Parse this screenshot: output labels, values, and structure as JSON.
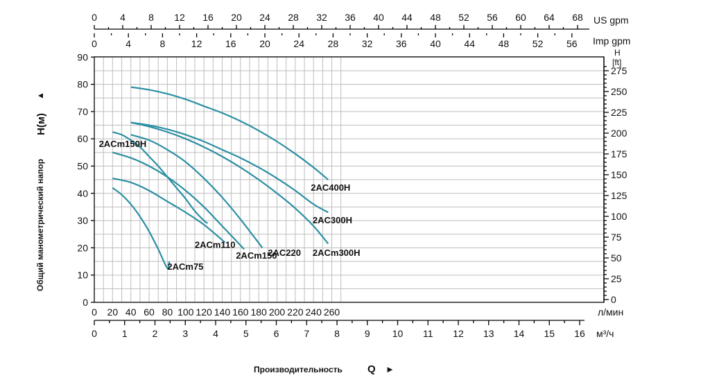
{
  "chart_data": {
    "type": "line",
    "ylabel_rotated": "Общий манометрический напор",
    "ylabel_symbol": "H(м)",
    "ylabel_arrow": "▲",
    "xlabel": "Производительность",
    "xlabel_symbol": "Q",
    "xlabel_arrow": "►",
    "axes": {
      "x_lpm": {
        "unit": "л/мин",
        "range": [
          0,
          270
        ],
        "ticks": [
          0,
          20,
          40,
          60,
          80,
          100,
          120,
          140,
          160,
          180,
          200,
          220,
          240,
          260
        ]
      },
      "x_m3h": {
        "unit": "м³/ч",
        "ticks": [
          0,
          1,
          2,
          3,
          4,
          5,
          6,
          7,
          8,
          9,
          10,
          11,
          12,
          13,
          14,
          15,
          16
        ]
      },
      "x_usgpm": {
        "unit": "US gpm",
        "ticks": [
          0,
          4,
          8,
          12,
          16,
          20,
          24,
          28,
          32,
          36,
          40,
          44,
          48,
          52,
          56,
          60,
          64,
          68
        ]
      },
      "x_impgpm": {
        "unit": "Imp gpm",
        "ticks": [
          0,
          4,
          8,
          12,
          16,
          20,
          24,
          28,
          32,
          36,
          40,
          44,
          48,
          52,
          56
        ]
      },
      "y_m": {
        "unit": "H(м)",
        "range": [
          0,
          90
        ],
        "ticks": [
          0,
          10,
          20,
          30,
          40,
          50,
          60,
          70,
          80,
          90
        ]
      },
      "y_ft": {
        "unit_line1": "H",
        "unit_line2": "[ft]",
        "ticks": [
          0,
          25,
          50,
          75,
          100,
          125,
          150,
          175,
          200,
          225,
          250,
          275
        ]
      }
    },
    "grid": true,
    "series": [
      {
        "name": "2ACm75",
        "x": [
          20,
          30,
          40,
          50,
          60,
          70,
          80,
          82
        ],
        "y": [
          42,
          39.5,
          36,
          31.5,
          26,
          19.5,
          12.5,
          15
        ]
      },
      {
        "name": "2ACm110",
        "x": [
          20,
          40,
          60,
          80,
          100,
          120,
          143
        ],
        "y": [
          45.5,
          44,
          41,
          37,
          33,
          28.5,
          22
        ]
      },
      {
        "name": "2ACm150H",
        "x": [
          20,
          30,
          40,
          50,
          60,
          70,
          80,
          90,
          100,
          110,
          120,
          124
        ],
        "y": [
          62.5,
          61.5,
          59.5,
          57,
          53.5,
          50,
          46,
          42,
          38,
          33.5,
          30,
          29
        ]
      },
      {
        "name": "2ACm150",
        "x": [
          20,
          40,
          60,
          80,
          100,
          120,
          140,
          164
        ],
        "y": [
          55,
          53,
          50,
          46,
          41,
          35,
          28,
          19.5
        ]
      },
      {
        "name": "2AC220",
        "x": [
          40,
          60,
          80,
          100,
          120,
          140,
          160,
          184
        ],
        "y": [
          61.5,
          59.5,
          56,
          51.5,
          45.5,
          38.5,
          30.5,
          20
        ]
      },
      {
        "name": "2ACm300H",
        "x": [
          40,
          60,
          80,
          100,
          120,
          140,
          160,
          180,
          200,
          220,
          240,
          256
        ],
        "y": [
          66,
          64.5,
          62.5,
          60,
          57,
          53.5,
          49.5,
          45,
          40,
          34.5,
          28,
          21.5
        ]
      },
      {
        "name": "2AC300H",
        "x": [
          40,
          60,
          80,
          100,
          120,
          140,
          160,
          180,
          200,
          220,
          240,
          256
        ],
        "y": [
          66,
          65,
          63.5,
          61.5,
          59,
          56,
          53,
          49.5,
          45.5,
          41,
          36,
          33
        ]
      },
      {
        "name": "2AC400H",
        "x": [
          40,
          60,
          80,
          100,
          120,
          140,
          160,
          180,
          200,
          220,
          240,
          256
        ],
        "y": [
          79,
          78,
          76.5,
          74.5,
          72,
          69.5,
          66.5,
          63,
          59,
          54.5,
          49.5,
          45
        ]
      }
    ],
    "series_colors": {
      "line": "#2b8fa3"
    },
    "curve_labels": [
      {
        "series": "2ACm75",
        "text": "2ACm75",
        "near_x": 80,
        "near_y": 12
      },
      {
        "series": "2ACm110",
        "text": "2ACm110",
        "near_x": 110,
        "near_y": 20
      },
      {
        "series": "2ACm150H",
        "text": "2ACm150H",
        "near_x": 5,
        "near_y": 57
      },
      {
        "series": "2ACm150",
        "text": "2ACm150",
        "near_x": 155,
        "near_y": 16
      },
      {
        "series": "2AC220",
        "text": "2AC220",
        "near_x": 190,
        "near_y": 17
      },
      {
        "series": "2ACm300H",
        "text": "2ACm300H",
        "near_x": 239,
        "near_y": 17
      },
      {
        "series": "2AC300H",
        "text": "2AC300H",
        "near_x": 239,
        "near_y": 29
      },
      {
        "series": "2AC400H",
        "text": "2AC400H",
        "near_x": 237,
        "near_y": 41
      }
    ]
  }
}
